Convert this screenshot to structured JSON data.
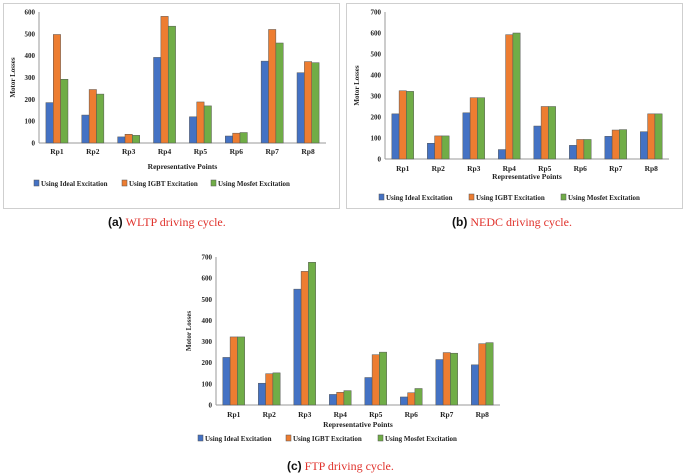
{
  "colors": {
    "ideal": "#4472c4",
    "igbt": "#ed7d31",
    "mosfet": "#70ad47"
  },
  "chart_data": [
    {
      "type": "bar",
      "categories": [
        "Rp1",
        "Rp2",
        "Rp3",
        "Rp4",
        "Rp5",
        "Rp6",
        "Rp7",
        "Rp8"
      ],
      "series": [
        {
          "name": "Using Ideal Excitation",
          "values": [
            185,
            128,
            28,
            392,
            120,
            32,
            375,
            322
          ]
        },
        {
          "name": "Using IGBT Excitation",
          "values": [
            497,
            245,
            40,
            580,
            188,
            45,
            520,
            373
          ]
        },
        {
          "name": "Using Mosfet Excitation",
          "values": [
            292,
            224,
            35,
            535,
            170,
            48,
            458,
            368
          ]
        }
      ],
      "xlabel": "Representative Points",
      "ylabel": "Motor Losses",
      "ylim": [
        0,
        600
      ],
      "yticks": [
        "0",
        "100",
        "200",
        "300",
        "400",
        "500",
        "600"
      ],
      "legend_position": "bottom",
      "grid": false
    },
    {
      "type": "bar",
      "categories": [
        "Rp1",
        "Rp2",
        "Rp3",
        "Rp4",
        "Rp5",
        "Rp6",
        "Rp7",
        "Rp8"
      ],
      "series": [
        {
          "name": "Using Ideal Excitation",
          "values": [
            215,
            75,
            220,
            45,
            157,
            65,
            108,
            130
          ]
        },
        {
          "name": "Using IGBT Excitation",
          "values": [
            325,
            110,
            292,
            592,
            250,
            93,
            138,
            215
          ]
        },
        {
          "name": "Using Mosfet Excitation",
          "values": [
            322,
            110,
            292,
            600,
            250,
            93,
            140,
            215
          ]
        }
      ],
      "xlabel": "Representative Points",
      "ylabel": "Motor Losses",
      "ylim": [
        0,
        700
      ],
      "yticks": [
        "0",
        "100",
        "200",
        "300",
        "400",
        "500",
        "600",
        "700"
      ],
      "legend_position": "bottom",
      "grid": false
    },
    {
      "type": "bar",
      "categories": [
        "Rp1",
        "Rp2",
        "Rp3",
        "Rp4",
        "Rp5",
        "Rp6",
        "Rp7",
        "Rp8"
      ],
      "series": [
        {
          "name": "Using Ideal Excitation",
          "values": [
            225,
            103,
            548,
            50,
            130,
            38,
            215,
            190
          ]
        },
        {
          "name": "Using IGBT Excitation",
          "values": [
            322,
            148,
            632,
            60,
            238,
            58,
            248,
            290
          ]
        },
        {
          "name": "Using Mosfet Excitation",
          "values": [
            322,
            152,
            675,
            68,
            250,
            78,
            245,
            295
          ]
        }
      ],
      "xlabel": "Representative Points",
      "ylabel": "Motor Losses",
      "ylim": [
        0,
        700
      ],
      "yticks": [
        "0",
        "100",
        "200",
        "300",
        "400",
        "500",
        "600",
        "700"
      ],
      "legend_position": "bottom",
      "grid": false
    }
  ],
  "captions": [
    {
      "label": "(a)",
      "text": "WLTP driving cycle."
    },
    {
      "label": "(b)",
      "text": "NEDC driving cycle."
    },
    {
      "label": "(c)",
      "text": "FTP driving cycle."
    }
  ]
}
